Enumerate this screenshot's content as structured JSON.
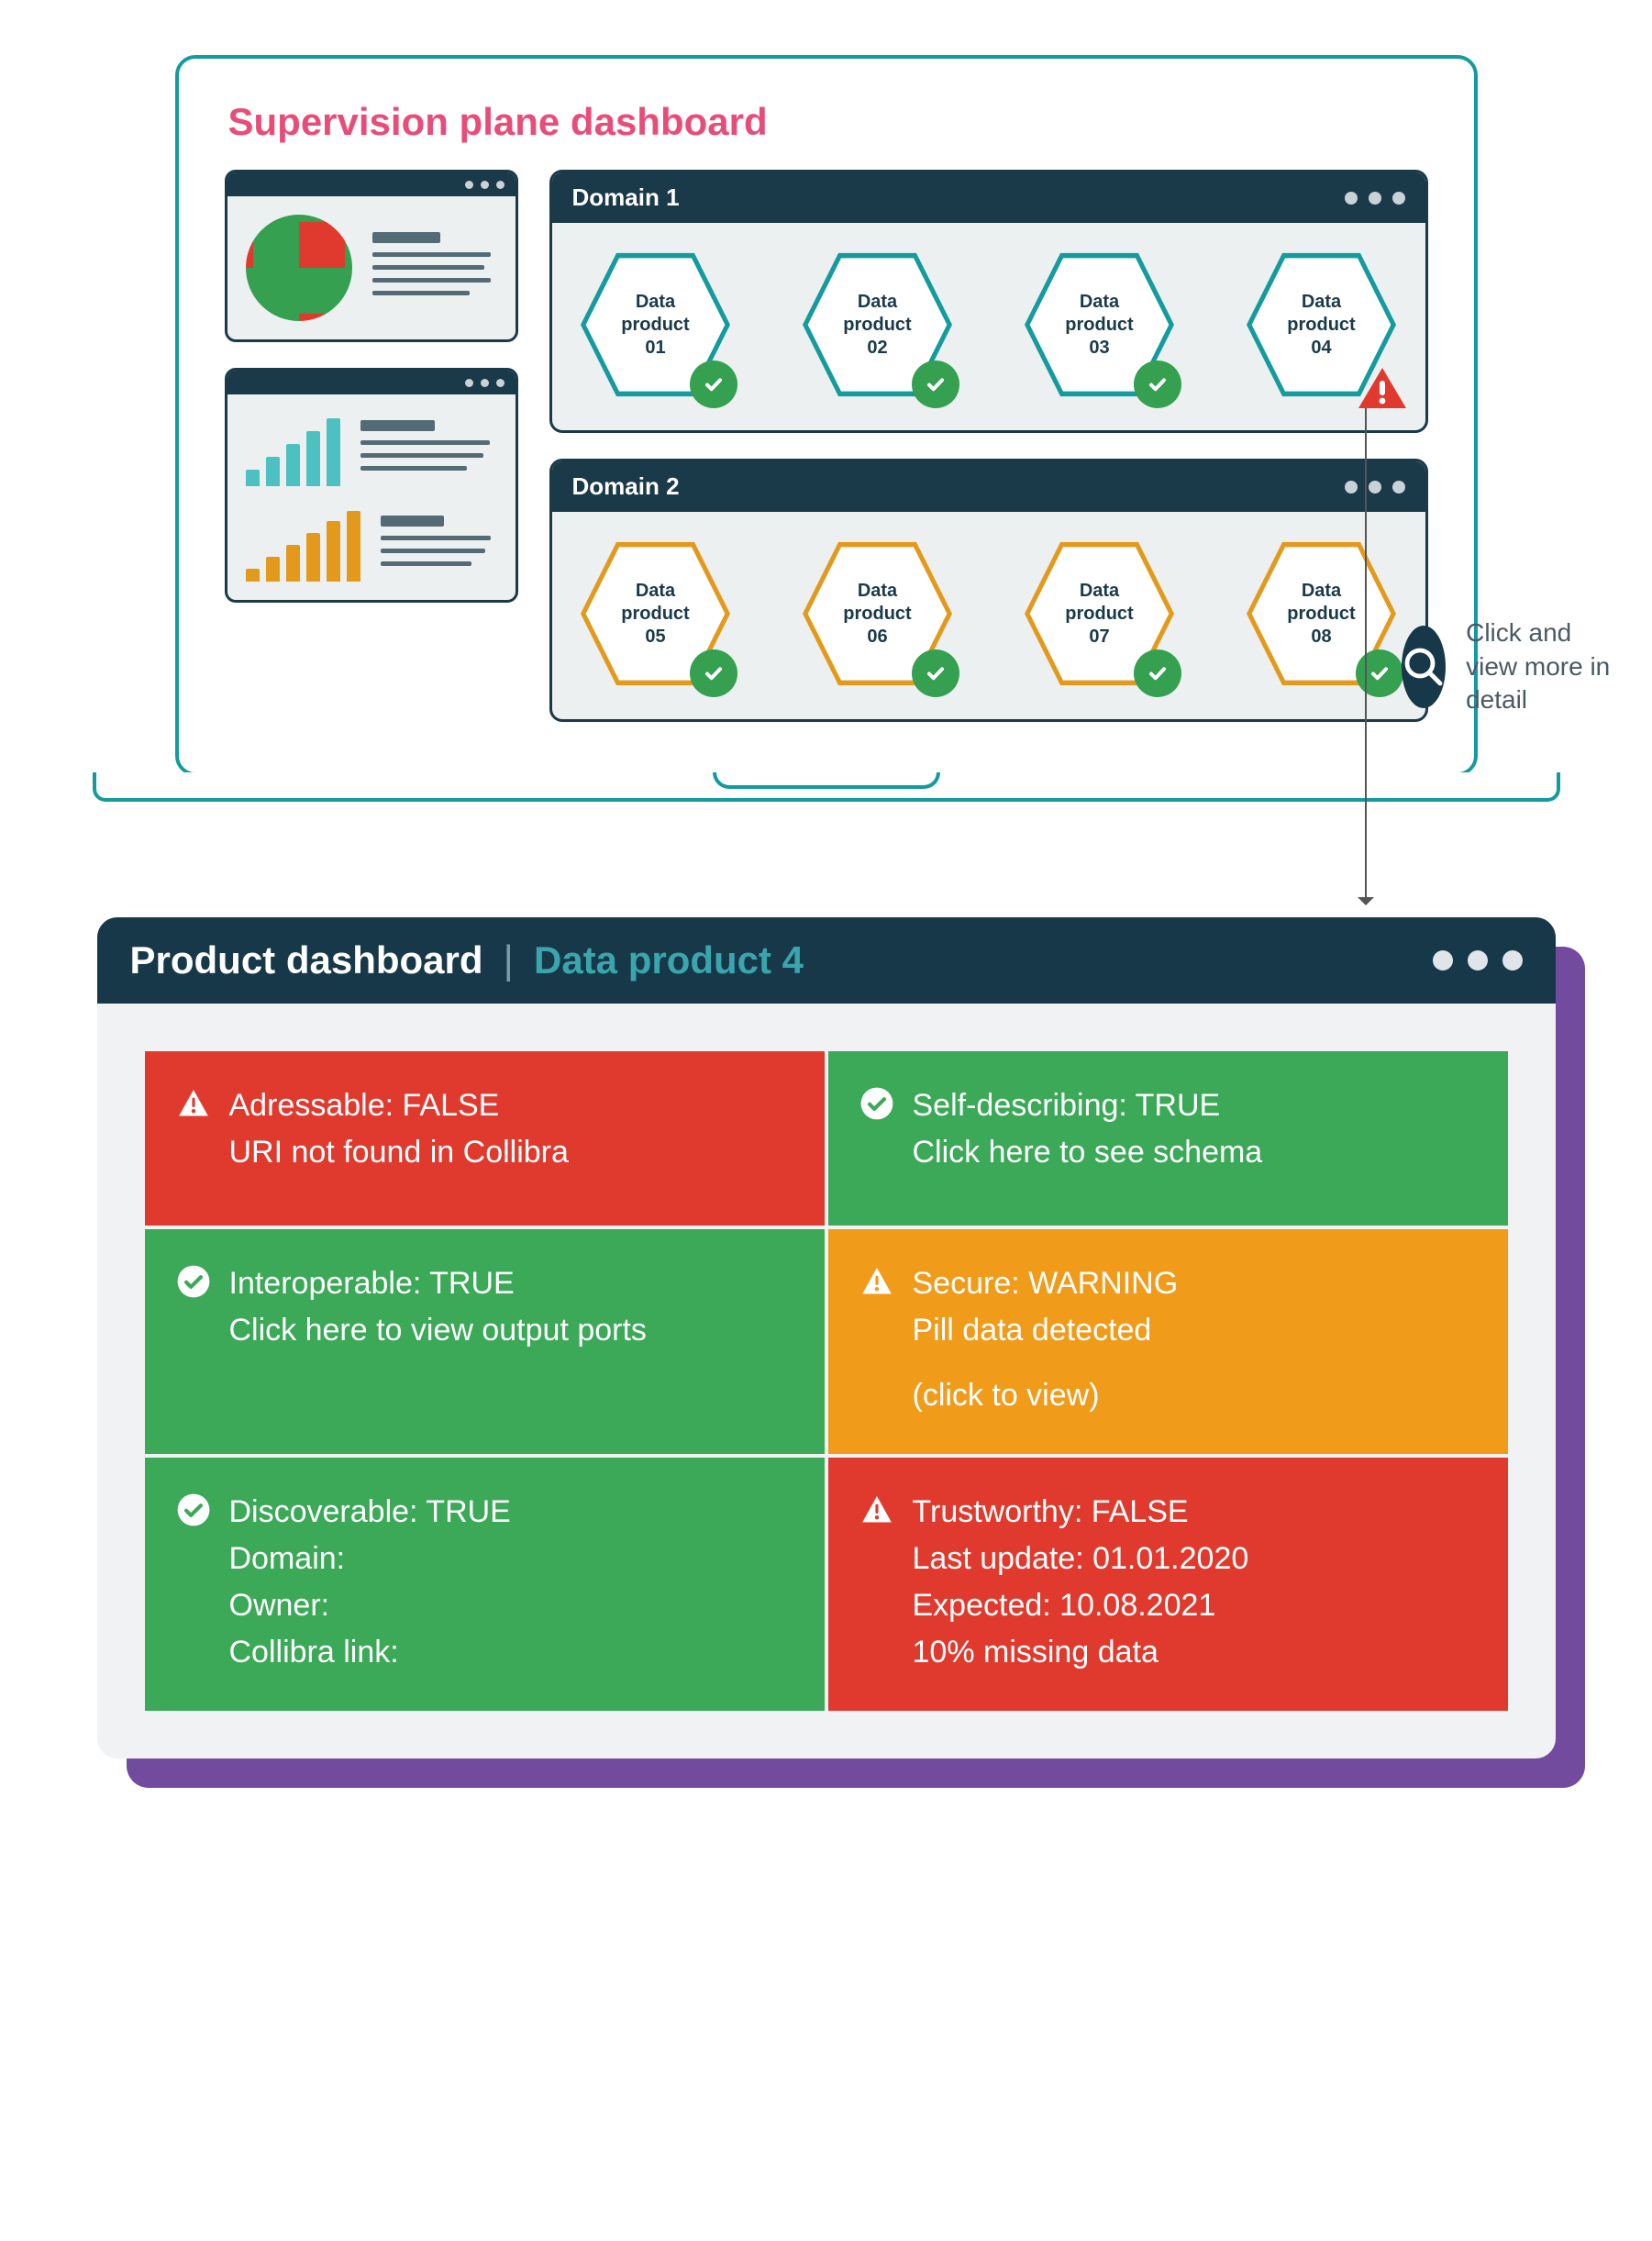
{
  "colors": {
    "teal": "#149b9e",
    "teal_light": "#4dc0c2",
    "dark_navy": "#1a3a4a",
    "pink": "#e84d7a",
    "green": "#34a050",
    "green2": "#3ba957",
    "red": "#e03a2e",
    "orange": "#f09b1a",
    "panel_bg": "#edf0f1",
    "gray_text": "#4a5a62",
    "gray_line": "#546a74",
    "purple": "#724a9e",
    "amber": "#e39a1c"
  },
  "supervision": {
    "title": "Supervision plane dashboard",
    "pie": {
      "slices": [
        {
          "label": "error",
          "pct": 25,
          "color": "#e03a2e"
        },
        {
          "label": "ok",
          "pct": 75,
          "color": "#34a050"
        }
      ]
    },
    "mini_bar_teal": {
      "color": "#4dc0c2",
      "heights_pct": [
        22,
        40,
        58,
        75,
        92
      ]
    },
    "mini_bar_amber": {
      "color": "#e39a1c",
      "heights_pct": [
        18,
        34,
        50,
        66,
        82,
        96
      ]
    },
    "domains": [
      {
        "name": "Domain 1",
        "hex_color": "teal",
        "products": [
          {
            "label": "Data\nproduct\n01",
            "status": "ok"
          },
          {
            "label": "Data\nproduct\n02",
            "status": "ok"
          },
          {
            "label": "Data\nproduct\n03",
            "status": "ok"
          },
          {
            "label": "Data\nproduct\n04",
            "status": "alert"
          }
        ]
      },
      {
        "name": "Domain 2",
        "hex_color": "amber",
        "products": [
          {
            "label": "Data\nproduct\n05",
            "status": "ok"
          },
          {
            "label": "Data\nproduct\n06",
            "status": "ok"
          },
          {
            "label": "Data\nproduct\n07",
            "status": "ok"
          },
          {
            "label": "Data\nproduct\n08",
            "status": "ok"
          }
        ]
      }
    ]
  },
  "zoom_hint": "Click and view more in detail",
  "product": {
    "window_title": "Product dashboard",
    "subtitle": "Data product 4",
    "tiles": [
      {
        "status": "red",
        "icon": "alert",
        "lines": [
          "Adressable: FALSE",
          "URI not found in Collibra"
        ]
      },
      {
        "status": "green",
        "icon": "check",
        "lines": [
          "Self-describing: TRUE",
          "Click here to see schema"
        ]
      },
      {
        "status": "green",
        "icon": "check",
        "lines": [
          "Interoperable: TRUE",
          "Click here to view output ports"
        ]
      },
      {
        "status": "orange",
        "icon": "alert",
        "lines": [
          "Secure: WARNING",
          "Pill data detected",
          "",
          "(click to view)"
        ]
      },
      {
        "status": "green",
        "icon": "check",
        "lines": [
          "Discoverable: TRUE",
          "Domain:",
          "Owner:",
          "Collibra link:"
        ]
      },
      {
        "status": "red",
        "icon": "alert",
        "lines": [
          "Trustworthy: FALSE",
          "Last update: 01.01.2020",
          "Expected: 10.08.2021",
          "10% missing data"
        ]
      }
    ]
  }
}
